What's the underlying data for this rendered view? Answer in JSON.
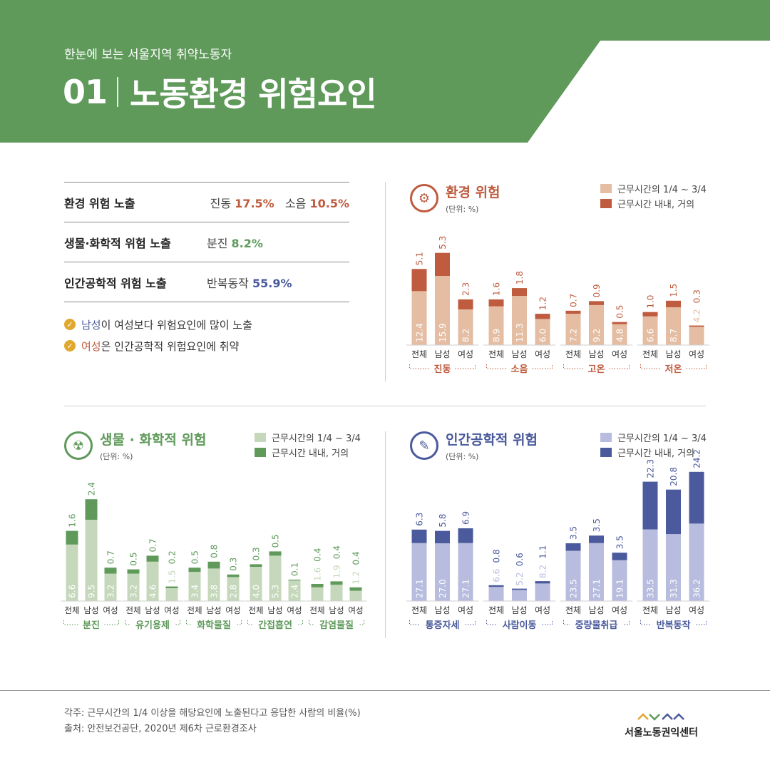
{
  "header": {
    "subtitle": "한눈에 보는 서울지역 취약노동자",
    "number": "01",
    "title": "노동환경 위험요인",
    "color": "#5f9a5b"
  },
  "summary": [
    {
      "label": "환경 위험 노출",
      "parts": [
        {
          "text": "진동 ",
          "num": "17.5%",
          "color": "#bf5b3e"
        },
        {
          "text": "  소음 ",
          "num": "10.5%",
          "color": "#bf5b3e"
        }
      ]
    },
    {
      "label": "생물·화학적 위험 노출",
      "parts": [
        {
          "text": "분진 ",
          "num": "8.2%",
          "color": "#5f9a5b"
        }
      ]
    },
    {
      "label": "인간공학적 위험 노출",
      "parts": [
        {
          "text": "반복동작 ",
          "num": "55.9%",
          "color": "#4a5a9c"
        }
      ]
    }
  ],
  "notes": [
    {
      "highlight": "남성",
      "highlight_color": "#4a5a9c",
      "rest": "이 여성보다 위험요인에 많이 노출"
    },
    {
      "highlight": "여성",
      "highlight_color": "#bf5b3e",
      "rest": "은 인간공학적 위험요인에 취약"
    }
  ],
  "legend_labels": [
    "근무시간의 1/4 ~ 3/4",
    "근무시간 내내, 거의"
  ],
  "sub_labels": [
    "전체",
    "남성",
    "여성"
  ],
  "panels": {
    "env": {
      "title": "환경 위험",
      "unit": "(단위: %)",
      "icon": "gear-icon",
      "light": "#e4bda2",
      "dark": "#bf5b3e",
      "text": "#bf5b3e"
    },
    "bio": {
      "title": "생물 · 화학적 위험",
      "unit": "(단위: %)",
      "icon": "biohazard-icon",
      "light": "#c5d8bb",
      "dark": "#5f9a5b",
      "text": "#5f9a5b"
    },
    "ergo": {
      "title": "인간공학적 위험",
      "unit": "(단위: %)",
      "icon": "wrench-icon",
      "light": "#b8bcde",
      "dark": "#4a5a9c",
      "text": "#4a5a9c"
    }
  },
  "chart_data": [
    {
      "type": "bar",
      "title": "환경 위험",
      "stacked": true,
      "series": [
        {
          "name": "근무시간의 1/4 ~ 3/4"
        },
        {
          "name": "근무시간 내내, 거의"
        }
      ],
      "groups": [
        {
          "name": "진동",
          "bars": [
            {
              "label": "전체",
              "light": 12.4,
              "dark": 5.1
            },
            {
              "label": "남성",
              "light": 15.9,
              "dark": 5.3
            },
            {
              "label": "여성",
              "light": 8.2,
              "dark": 2.3
            }
          ]
        },
        {
          "name": "소음",
          "bars": [
            {
              "label": "전체",
              "light": 8.9,
              "dark": 1.6
            },
            {
              "label": "남성",
              "light": 11.3,
              "dark": 1.8
            },
            {
              "label": "여성",
              "light": 6.0,
              "dark": 1.2
            }
          ]
        },
        {
          "name": "고온",
          "bars": [
            {
              "label": "전체",
              "light": 7.2,
              "dark": 0.7
            },
            {
              "label": "남성",
              "light": 9.2,
              "dark": 0.9
            },
            {
              "label": "여성",
              "light": 4.8,
              "dark": 0.5
            }
          ]
        },
        {
          "name": "저온",
          "bars": [
            {
              "label": "전체",
              "light": 6.6,
              "dark": 1.0
            },
            {
              "label": "남성",
              "light": 8.7,
              "dark": 1.5
            },
            {
              "label": "여성",
              "light": 4.2,
              "dark": 0.3
            }
          ]
        }
      ]
    },
    {
      "type": "bar",
      "title": "생물 · 화학적 위험",
      "stacked": true,
      "series": [
        {
          "name": "근무시간의 1/4 ~ 3/4"
        },
        {
          "name": "근무시간 내내, 거의"
        }
      ],
      "groups": [
        {
          "name": "분진",
          "bars": [
            {
              "label": "전체",
              "light": 6.6,
              "dark": 1.6
            },
            {
              "label": "남성",
              "light": 9.5,
              "dark": 2.4
            },
            {
              "label": "여성",
              "light": 3.2,
              "dark": 0.7
            }
          ]
        },
        {
          "name": "유기용제",
          "bars": [
            {
              "label": "전체",
              "light": 3.2,
              "dark": 0.5
            },
            {
              "label": "남성",
              "light": 4.6,
              "dark": 0.7
            },
            {
              "label": "여성",
              "light": 1.5,
              "dark": 0.2
            }
          ]
        },
        {
          "name": "화학물질",
          "bars": [
            {
              "label": "전체",
              "light": 3.4,
              "dark": 0.5
            },
            {
              "label": "남성",
              "light": 3.8,
              "dark": 0.8
            },
            {
              "label": "여성",
              "light": 2.8,
              "dark": 0.3
            }
          ]
        },
        {
          "name": "간접흡연",
          "bars": [
            {
              "label": "전체",
              "light": 4.0,
              "dark": 0.3
            },
            {
              "label": "남성",
              "light": 5.3,
              "dark": 0.5
            },
            {
              "label": "여성",
              "light": 2.4,
              "dark": 0.1
            }
          ]
        },
        {
          "name": "감염물질",
          "bars": [
            {
              "label": "전체",
              "light": 1.6,
              "dark": 0.4
            },
            {
              "label": "남성",
              "light": 1.9,
              "dark": 0.4
            },
            {
              "label": "여성",
              "light": 1.2,
              "dark": 0.4
            }
          ]
        }
      ]
    },
    {
      "type": "bar",
      "title": "인간공학적 위험",
      "stacked": true,
      "series": [
        {
          "name": "근무시간의 1/4 ~ 3/4"
        },
        {
          "name": "근무시간 내내, 거의"
        }
      ],
      "groups": [
        {
          "name": "통증자세",
          "bars": [
            {
              "label": "전체",
              "light": 27.1,
              "dark": 6.3
            },
            {
              "label": "남성",
              "light": 27.0,
              "dark": 5.8
            },
            {
              "label": "여성",
              "light": 27.1,
              "dark": 6.9
            }
          ]
        },
        {
          "name": "사람이동",
          "bars": [
            {
              "label": "전체",
              "light": 6.6,
              "dark": 0.8
            },
            {
              "label": "남성",
              "light": 5.2,
              "dark": 0.6
            },
            {
              "label": "여성",
              "light": 8.2,
              "dark": 1.1
            }
          ]
        },
        {
          "name": "중량물취급",
          "bars": [
            {
              "label": "전체",
              "light": 23.5,
              "dark": 3.5
            },
            {
              "label": "남성",
              "light": 27.1,
              "dark": 3.5
            },
            {
              "label": "여성",
              "light": 19.1,
              "dark": 3.5
            }
          ]
        },
        {
          "name": "반복동작",
          "bars": [
            {
              "label": "전체",
              "light": 33.5,
              "dark": 22.3
            },
            {
              "label": "남성",
              "light": 31.3,
              "dark": 20.8
            },
            {
              "label": "여성",
              "light": 36.2,
              "dark": 24.2
            }
          ]
        }
      ]
    }
  ],
  "footer": {
    "note": "각주: 근무시간의 1/4 이상을 해당요인에 노출된다고 응답한 사람의 비율(%)",
    "source": "출처: 안전보건공단, 2020년 제6차 근로환경조사",
    "logo": "서울노동권익센터"
  }
}
